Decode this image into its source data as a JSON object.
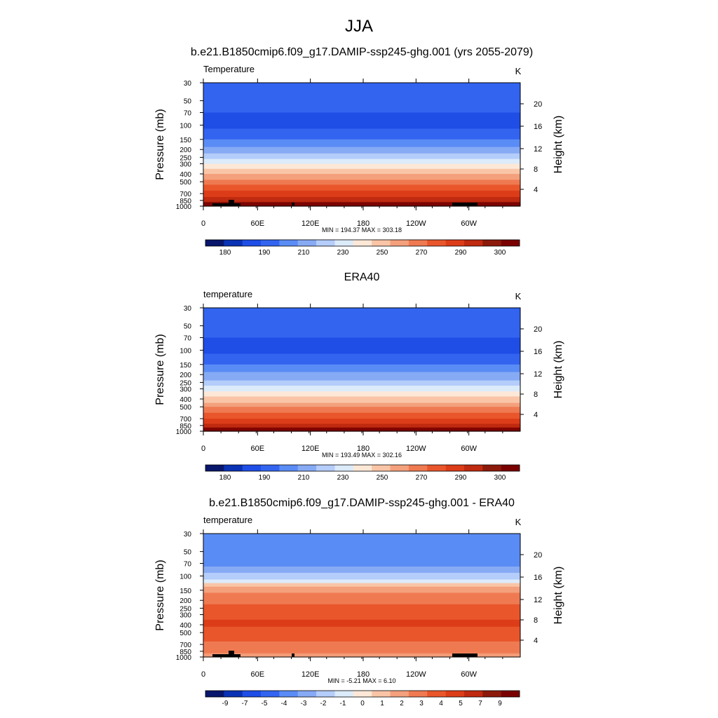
{
  "main_title": "JJA",
  "chart_data": [
    {
      "type": "heatmap",
      "title": "b.e21.B1850cmip6.f09_g17.DAMIP-ssp245-ghg.001 (yrs 2055-2079)",
      "left_label": "Temperature",
      "units": "K",
      "ylabel": "Pressure (mb)",
      "y2label": "Height (km)",
      "pressure_ticks": [
        "30",
        "50",
        "70",
        "100",
        "150",
        "200",
        "250",
        "300",
        "400",
        "500",
        "700",
        "850",
        "1000"
      ],
      "height_ticks": [
        "4",
        "8",
        "12",
        "16",
        "20"
      ],
      "x_ticks": [
        "0",
        "60E",
        "120E",
        "180",
        "120W",
        "60W"
      ],
      "stats": "MIN = 194.37  MAX = 303.18",
      "colorbar_labels": [
        "180",
        "190",
        "210",
        "230",
        "250",
        "270",
        "290",
        "300"
      ],
      "colorbar_colors": [
        "#08166b",
        "#0a32b4",
        "#1e4ee6",
        "#3264f0",
        "#5a8cf5",
        "#87aaf5",
        "#b4cdfa",
        "#dcebfa",
        "#fde8d8",
        "#f9c5a6",
        "#f4a07c",
        "#ef7a52",
        "#e9562c",
        "#dc3d18",
        "#bf2a10",
        "#8c1a0a",
        "#7a0000"
      ],
      "profile": [
        {
          "p": 30,
          "v": 205
        },
        {
          "p": 50,
          "v": 200
        },
        {
          "p": 70,
          "v": 198
        },
        {
          "p": 100,
          "v": 196
        },
        {
          "p": 150,
          "v": 205
        },
        {
          "p": 200,
          "v": 215
        },
        {
          "p": 250,
          "v": 225
        },
        {
          "p": 300,
          "v": 235
        },
        {
          "p": 400,
          "v": 250
        },
        {
          "p": 500,
          "v": 262
        },
        {
          "p": 700,
          "v": 278
        },
        {
          "p": 850,
          "v": 288
        },
        {
          "p": 1000,
          "v": 297
        }
      ],
      "topography": true
    },
    {
      "type": "heatmap",
      "title": "ERA40",
      "left_label": "temperature",
      "units": "K",
      "ylabel": "Pressure (mb)",
      "y2label": "Height (km)",
      "pressure_ticks": [
        "30",
        "50",
        "70",
        "100",
        "150",
        "200",
        "250",
        "300",
        "400",
        "500",
        "700",
        "850",
        "1000"
      ],
      "height_ticks": [
        "4",
        "8",
        "12",
        "16",
        "20"
      ],
      "x_ticks": [
        "0",
        "60E",
        "120E",
        "180",
        "120W",
        "60W"
      ],
      "stats": "MIN = 193.49  MAX = 302.16",
      "colorbar_labels": [
        "180",
        "190",
        "210",
        "230",
        "250",
        "270",
        "290",
        "300"
      ],
      "colorbar_colors": [
        "#08166b",
        "#0a32b4",
        "#1e4ee6",
        "#3264f0",
        "#5a8cf5",
        "#87aaf5",
        "#b4cdfa",
        "#dcebfa",
        "#fde8d8",
        "#f9c5a6",
        "#f4a07c",
        "#ef7a52",
        "#e9562c",
        "#dc3d18",
        "#bf2a10",
        "#8c1a0a",
        "#7a0000"
      ],
      "profile": [
        {
          "p": 30,
          "v": 205
        },
        {
          "p": 50,
          "v": 200
        },
        {
          "p": 70,
          "v": 198
        },
        {
          "p": 100,
          "v": 196
        },
        {
          "p": 150,
          "v": 205
        },
        {
          "p": 200,
          "v": 215
        },
        {
          "p": 250,
          "v": 224
        },
        {
          "p": 300,
          "v": 232
        },
        {
          "p": 400,
          "v": 247
        },
        {
          "p": 500,
          "v": 258
        },
        {
          "p": 700,
          "v": 274
        },
        {
          "p": 850,
          "v": 284
        },
        {
          "p": 1000,
          "v": 294
        }
      ],
      "topography": false
    },
    {
      "type": "heatmap",
      "title": "b.e21.B1850cmip6.f09_g17.DAMIP-ssp245-ghg.001 - ERA40",
      "left_label": "temperature",
      "units": "K",
      "ylabel": "Pressure (mb)",
      "y2label": "Height (km)",
      "pressure_ticks": [
        "30",
        "50",
        "70",
        "100",
        "150",
        "200",
        "250",
        "300",
        "400",
        "500",
        "700",
        "850",
        "1000"
      ],
      "height_ticks": [
        "4",
        "8",
        "12",
        "16",
        "20"
      ],
      "x_ticks": [
        "0",
        "60E",
        "120E",
        "180",
        "120W",
        "60W"
      ],
      "stats": "MIN =  -5.21  MAX =   6.10",
      "colorbar_labels": [
        "-9",
        "-7",
        "-5",
        "-4",
        "-3",
        "-2",
        "-1",
        "0",
        "1",
        "2",
        "3",
        "4",
        "5",
        "7",
        "9"
      ],
      "colorbar_colors": [
        "#08166b",
        "#0a32b4",
        "#1e4ee6",
        "#3264f0",
        "#5a8cf5",
        "#87aaf5",
        "#b4cdfa",
        "#dcebfa",
        "#fde8d8",
        "#f9c5a6",
        "#f4a07c",
        "#ef7a52",
        "#e9562c",
        "#dc3d18",
        "#bf2a10",
        "#8c1a0a",
        "#7a0000"
      ],
      "profile": [
        {
          "p": 30,
          "v": -4.2
        },
        {
          "p": 50,
          "v": -4.4
        },
        {
          "p": 70,
          "v": -4.8
        },
        {
          "p": 100,
          "v": -2.5
        },
        {
          "p": 150,
          "v": 2.5
        },
        {
          "p": 200,
          "v": 3.8
        },
        {
          "p": 250,
          "v": 4.5
        },
        {
          "p": 300,
          "v": 5.2
        },
        {
          "p": 400,
          "v": 5.4
        },
        {
          "p": 500,
          "v": 4.8
        },
        {
          "p": 700,
          "v": 3.8
        },
        {
          "p": 850,
          "v": 3.2
        },
        {
          "p": 1000,
          "v": 2.8
        }
      ],
      "topography": true
    }
  ]
}
